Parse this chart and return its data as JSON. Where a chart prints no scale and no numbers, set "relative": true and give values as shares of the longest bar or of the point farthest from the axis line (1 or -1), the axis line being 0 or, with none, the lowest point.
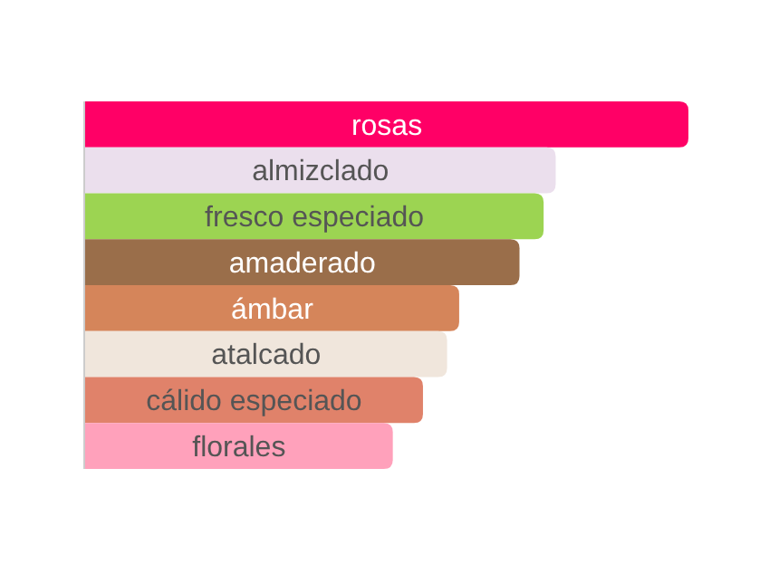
{
  "chart_data": {
    "type": "bar",
    "orientation": "horizontal",
    "relative": true,
    "categories": [
      "rosas",
      "almizclado",
      "fresco especiado",
      "amaderado",
      "ámbar",
      "atalcado",
      "cálido especiado",
      "florales"
    ],
    "values": [
      1,
      0.78,
      0.76,
      0.72,
      0.62,
      0.6,
      0.56,
      0.51
    ],
    "colors": [
      "#ff0066",
      "#ebdfed",
      "#9cd452",
      "#9a6e4a",
      "#d5855a",
      "#f0e6dc",
      "#e0826a",
      "#ffa1bb"
    ]
  }
}
